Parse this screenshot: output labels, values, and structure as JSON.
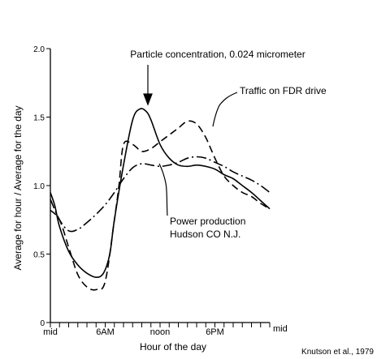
{
  "chart_data": {
    "type": "line",
    "title": "",
    "xlabel": "Hour of the day",
    "ylabel": "Average for hour / Average for the day",
    "xlim": [
      0,
      24
    ],
    "ylim": [
      0,
      2.0
    ],
    "x_ticks": [
      0,
      1,
      2,
      3,
      4,
      5,
      6,
      7,
      8,
      9,
      10,
      11,
      12,
      13,
      14,
      15,
      16,
      17,
      18,
      19,
      20,
      21,
      22,
      23,
      24
    ],
    "x_tick_labels": [
      {
        "x": 0,
        "label": "mid"
      },
      {
        "x": 6,
        "label": "6AM"
      },
      {
        "x": 12,
        "label": "noon"
      },
      {
        "x": 18,
        "label": "6PM"
      },
      {
        "x": 24,
        "label": "mid"
      }
    ],
    "y_tick_labels": [
      {
        "y": 0,
        "label": "0"
      },
      {
        "y": 0.5,
        "label": "0.5"
      },
      {
        "y": 1.0,
        "label": "1.0"
      },
      {
        "y": 1.5,
        "label": "1.5"
      },
      {
        "y": 2.0,
        "label": "2.0"
      }
    ],
    "grid": false,
    "series": [
      {
        "name": "Particle concentration, 0.024 micrometer",
        "style": "solid",
        "x": [
          0,
          0.5,
          1,
          2,
          3,
          4,
          5,
          5.8,
          6.5,
          7,
          8,
          9,
          9.8,
          10.5,
          11,
          12,
          13,
          14,
          15,
          16,
          17,
          18,
          19,
          20,
          21,
          22,
          23,
          24
        ],
        "y": [
          0.95,
          0.85,
          0.7,
          0.52,
          0.42,
          0.36,
          0.33,
          0.36,
          0.5,
          0.75,
          1.15,
          1.48,
          1.56,
          1.54,
          1.48,
          1.3,
          1.2,
          1.15,
          1.14,
          1.15,
          1.14,
          1.12,
          1.08,
          1.05,
          1.0,
          0.95,
          0.89,
          0.83
        ]
      },
      {
        "name": "Traffic on FDR drive",
        "style": "dashed",
        "x": [
          0,
          1,
          2,
          3,
          4,
          5,
          6,
          7,
          7.5,
          8,
          9,
          10,
          11,
          12,
          13,
          14,
          15,
          16,
          17,
          18,
          19,
          20,
          21,
          22,
          23,
          24
        ],
        "y": [
          0.82,
          0.75,
          0.55,
          0.35,
          0.26,
          0.24,
          0.3,
          0.75,
          1.0,
          1.3,
          1.3,
          1.25,
          1.27,
          1.32,
          1.37,
          1.42,
          1.47,
          1.45,
          1.35,
          1.2,
          1.07,
          1.0,
          0.95,
          0.92,
          0.87,
          0.83
        ]
      },
      {
        "name": "Power production Hudson CO N.J.",
        "style": "dash-dot",
        "x": [
          0,
          1,
          2,
          3,
          4,
          5,
          6,
          7,
          8,
          9,
          10,
          11,
          12,
          13,
          14,
          15,
          16,
          17,
          18,
          19,
          20,
          21,
          22,
          23,
          24
        ],
        "y": [
          0.9,
          0.75,
          0.67,
          0.68,
          0.73,
          0.79,
          0.86,
          0.95,
          1.05,
          1.13,
          1.16,
          1.15,
          1.14,
          1.15,
          1.17,
          1.2,
          1.21,
          1.2,
          1.17,
          1.14,
          1.1,
          1.07,
          1.04,
          1.0,
          0.95
        ]
      }
    ],
    "annotations": {
      "particle": "Particle concentration, 0.024 micrometer",
      "traffic": "Traffic on FDR drive",
      "power_line1": "Power production",
      "power_line2": "Hudson CO N.J.",
      "credit": "Knutson et al., 1979"
    }
  }
}
